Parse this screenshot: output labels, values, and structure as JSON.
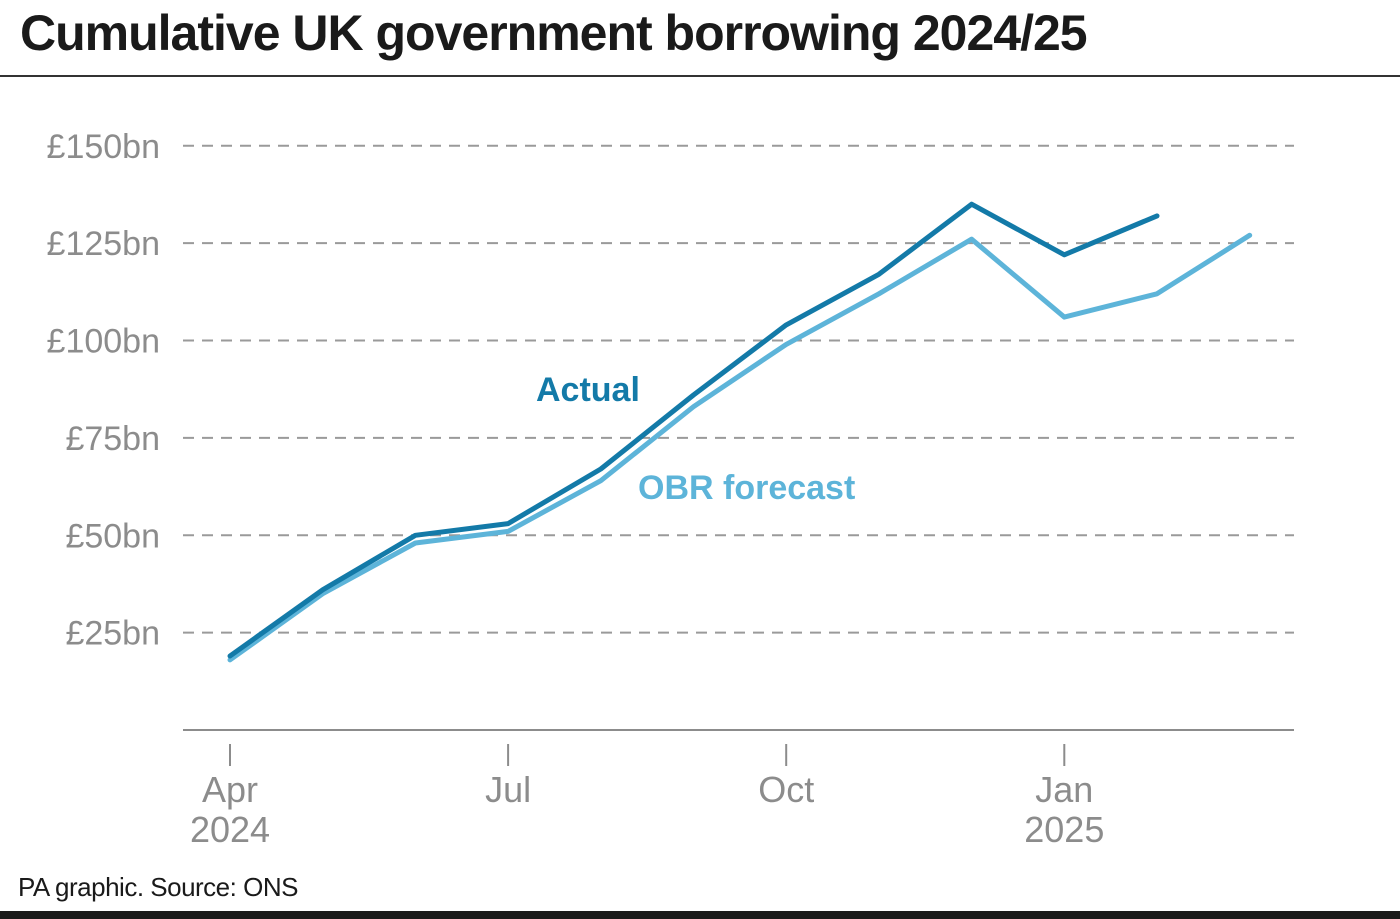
{
  "title": "Cumulative UK government borrowing 2024/25",
  "source": "PA graphic. Source: ONS",
  "colors": {
    "actual": "#137aa8",
    "forecast": "#5db4d9",
    "grid": "#9a9a9a",
    "axis": "#8c8c8c",
    "text": "#1a1a1a"
  },
  "chart_data": {
    "type": "line",
    "title": "Cumulative UK government borrowing 2024/25",
    "xlabel": "",
    "ylabel": "",
    "x": [
      "2024-04",
      "2024-05",
      "2024-06",
      "2024-07",
      "2024-08",
      "2024-09",
      "2024-10",
      "2024-11",
      "2024-12",
      "2025-01",
      "2025-02",
      "2025-03"
    ],
    "x_ticks": [
      {
        "month_index": 0,
        "label": "Apr",
        "sublabel": "2024"
      },
      {
        "month_index": 3,
        "label": "Jul",
        "sublabel": ""
      },
      {
        "month_index": 6,
        "label": "Oct",
        "sublabel": ""
      },
      {
        "month_index": 9,
        "label": "Jan",
        "sublabel": "2025"
      }
    ],
    "y_ticks": [
      {
        "value": 25,
        "label": "£25bn"
      },
      {
        "value": 50,
        "label": "£50bn"
      },
      {
        "value": 75,
        "label": "£75bn"
      },
      {
        "value": 100,
        "label": "£100bn"
      },
      {
        "value": 125,
        "label": "£125bn"
      },
      {
        "value": 150,
        "label": "£150bn"
      }
    ],
    "ylim": [
      0,
      150
    ],
    "grid": true,
    "grid_style": "dashed horizontal",
    "series": [
      {
        "name": "Actual",
        "color_key": "actual",
        "values": [
          19,
          36,
          50,
          53,
          67,
          86,
          104,
          117,
          135,
          122,
          132,
          null
        ]
      },
      {
        "name": "OBR forecast",
        "color_key": "forecast",
        "values": [
          18,
          35,
          48,
          51,
          64,
          83,
          99,
          112,
          126,
          106,
          112,
          127
        ]
      }
    ],
    "annotations": [
      {
        "text": "Actual",
        "series": "Actual"
      },
      {
        "text": "OBR forecast",
        "series": "OBR forecast"
      }
    ]
  }
}
